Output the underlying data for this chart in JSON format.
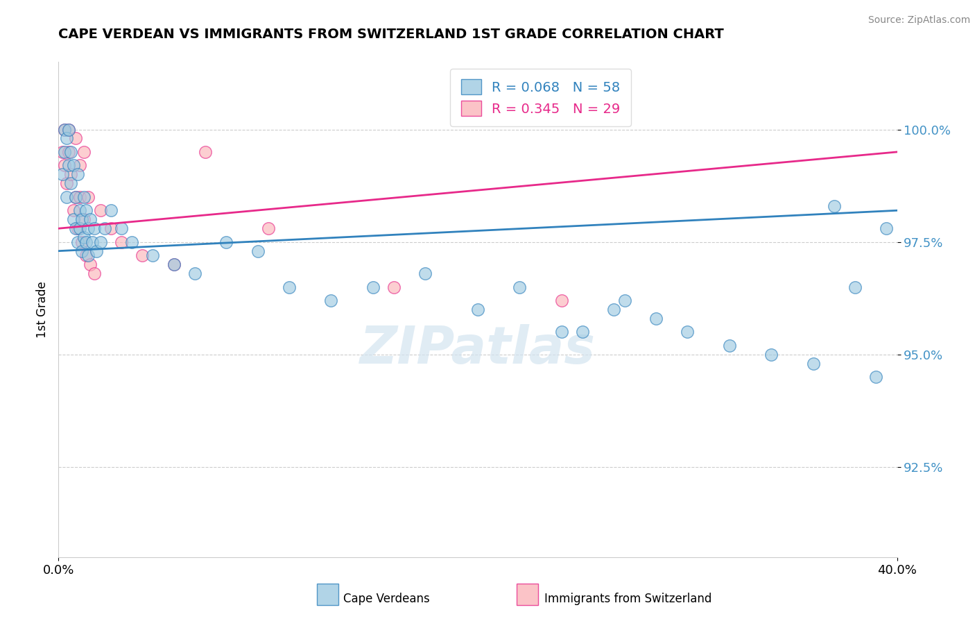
{
  "title": "CAPE VERDEAN VS IMMIGRANTS FROM SWITZERLAND 1ST GRADE CORRELATION CHART",
  "source": "Source: ZipAtlas.com",
  "ylabel": "1st Grade",
  "yticks": [
    92.5,
    95.0,
    97.5,
    100.0
  ],
  "ytick_labels": [
    "92.5%",
    "95.0%",
    "97.5%",
    "100.0%"
  ],
  "xlim": [
    0.0,
    40.0
  ],
  "ylim": [
    90.5,
    101.5
  ],
  "legend_label_1": "R = 0.068   N = 58",
  "legend_label_2": "R = 0.345   N = 29",
  "watermark": "ZIPatlas",
  "blue_color": "#9ecae1",
  "pink_color": "#fbb4b9",
  "blue_edge_color": "#3182bd",
  "pink_edge_color": "#e7298a",
  "blue_line_color": "#3182bd",
  "pink_line_color": "#e7298a",
  "axis_tick_color": "#4292c6",
  "blue_line_y0": 97.3,
  "blue_line_y1": 98.2,
  "pink_line_y0": 97.8,
  "pink_line_y1": 99.5,
  "blue_scatter_x": [
    0.2,
    0.3,
    0.3,
    0.4,
    0.4,
    0.5,
    0.5,
    0.6,
    0.6,
    0.7,
    0.7,
    0.8,
    0.8,
    0.9,
    0.9,
    1.0,
    1.0,
    1.1,
    1.1,
    1.2,
    1.2,
    1.3,
    1.3,
    1.4,
    1.4,
    1.5,
    1.6,
    1.7,
    1.8,
    2.0,
    2.2,
    2.5,
    3.0,
    3.5,
    4.5,
    5.5,
    6.5,
    8.0,
    9.5,
    11.0,
    13.0,
    15.0,
    17.5,
    20.0,
    22.0,
    25.0,
    27.0,
    28.5,
    30.0,
    32.0,
    34.0,
    36.0,
    38.0,
    39.0,
    39.5,
    37.0,
    26.5,
    24.0
  ],
  "blue_scatter_y": [
    99.0,
    99.5,
    100.0,
    98.5,
    99.8,
    99.2,
    100.0,
    98.8,
    99.5,
    98.0,
    99.2,
    97.8,
    98.5,
    99.0,
    97.5,
    97.8,
    98.2,
    97.3,
    98.0,
    97.6,
    98.5,
    97.5,
    98.2,
    97.8,
    97.2,
    98.0,
    97.5,
    97.8,
    97.3,
    97.5,
    97.8,
    98.2,
    97.8,
    97.5,
    97.2,
    97.0,
    96.8,
    97.5,
    97.3,
    96.5,
    96.2,
    96.5,
    96.8,
    96.0,
    96.5,
    95.5,
    96.2,
    95.8,
    95.5,
    95.2,
    95.0,
    94.8,
    96.5,
    94.5,
    97.8,
    98.3,
    96.0,
    95.5
  ],
  "pink_scatter_x": [
    0.2,
    0.3,
    0.3,
    0.4,
    0.5,
    0.5,
    0.6,
    0.7,
    0.8,
    0.8,
    0.9,
    1.0,
    1.0,
    1.1,
    1.2,
    1.2,
    1.3,
    1.4,
    1.5,
    1.7,
    2.0,
    2.5,
    3.0,
    4.0,
    5.5,
    7.0,
    10.0,
    16.0,
    24.0
  ],
  "pink_scatter_y": [
    99.5,
    99.2,
    100.0,
    98.8,
    99.5,
    100.0,
    99.0,
    98.2,
    99.8,
    98.5,
    97.8,
    98.5,
    99.2,
    97.5,
    99.5,
    98.0,
    97.2,
    98.5,
    97.0,
    96.8,
    98.2,
    97.8,
    97.5,
    97.2,
    97.0,
    99.5,
    97.8,
    96.5,
    96.2
  ]
}
